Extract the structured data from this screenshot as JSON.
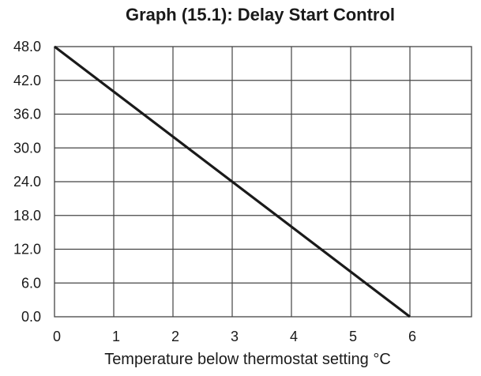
{
  "chart_data": {
    "type": "line",
    "title": "Graph (15.1):  Delay Start Control",
    "xlabel": "Temperature below thermostat setting °C",
    "ylabel": "",
    "xlim": [
      0,
      7
    ],
    "ylim": [
      0,
      48
    ],
    "x_ticks": [
      "0",
      "1",
      "2",
      "3",
      "4",
      "5",
      "6"
    ],
    "y_ticks": [
      "0.0",
      "6.0",
      "12.0",
      "18.0",
      "24.0",
      "30.0",
      "36.0",
      "42.0",
      "48.0"
    ],
    "grid": true,
    "series": [
      {
        "x": [
          0,
          6
        ],
        "y": [
          48,
          0
        ],
        "color": "#1a1a1a"
      }
    ]
  }
}
